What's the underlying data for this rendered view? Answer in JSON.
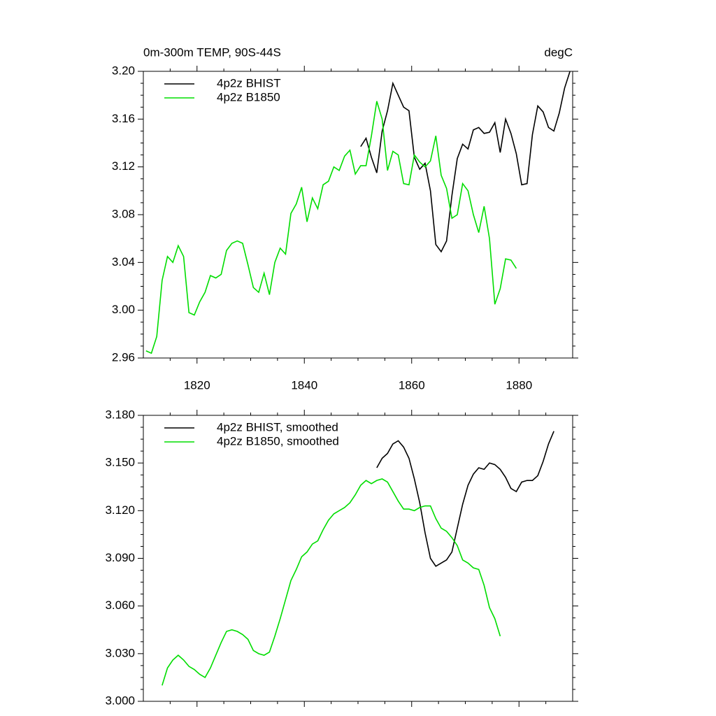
{
  "chart_data": [
    {
      "type": "line",
      "title": "0m-300m TEMP, 90S-44S",
      "unit_label": "degC",
      "xlim": [
        1810,
        1890
      ],
      "xticks": [
        1820,
        1840,
        1860,
        1880
      ],
      "ylim": [
        2.96,
        3.2
      ],
      "yticks": [
        2.96,
        {
          "value": 3.0,
          "label": "3.00"
        },
        3.04,
        3.08,
        3.12,
        3.16,
        {
          "value": 3.2,
          "label": "3.20"
        }
      ],
      "xtick_labels": true,
      "legend": "top-left",
      "series": [
        {
          "name": "4p2z BHIST",
          "color": "#000000",
          "x": [
            1850.5,
            1851.5,
            1852.5,
            1853.5,
            1854.5,
            1855.5,
            1856.5,
            1857.5,
            1858.5,
            1859.5,
            1860.5,
            1861.5,
            1862.5,
            1863.5,
            1864.5,
            1865.5,
            1866.5,
            1867.5,
            1868.5,
            1869.5,
            1870.5,
            1871.5,
            1872.5,
            1873.5,
            1874.5,
            1875.5,
            1876.5,
            1877.5,
            1878.5,
            1879.5,
            1880.5,
            1881.5,
            1882.5,
            1883.5,
            1884.5,
            1885.5,
            1886.5,
            1887.5,
            1888.5,
            1889.5
          ],
          "values": [
            3.137,
            3.144,
            3.128,
            3.115,
            3.15,
            3.167,
            3.19,
            3.18,
            3.17,
            3.167,
            3.128,
            3.118,
            3.123,
            3.1,
            3.055,
            3.049,
            3.058,
            3.096,
            3.127,
            3.139,
            3.135,
            3.151,
            3.153,
            3.148,
            3.149,
            3.157,
            3.132,
            3.16,
            3.148,
            3.131,
            3.105,
            3.106,
            3.147,
            3.171,
            3.166,
            3.153,
            3.15,
            3.165,
            3.186,
            3.2
          ]
        },
        {
          "name": "4p2z B1850",
          "color": "#00dd00",
          "x": [
            1810.5,
            1811.5,
            1812.5,
            1813.5,
            1814.5,
            1815.5,
            1816.5,
            1817.5,
            1818.5,
            1819.5,
            1820.5,
            1821.5,
            1822.5,
            1823.5,
            1824.5,
            1825.5,
            1826.5,
            1827.5,
            1828.5,
            1829.5,
            1830.5,
            1831.5,
            1832.5,
            1833.5,
            1834.5,
            1835.5,
            1836.5,
            1837.5,
            1838.5,
            1839.5,
            1840.5,
            1841.5,
            1842.5,
            1843.5,
            1844.5,
            1845.5,
            1846.5,
            1847.5,
            1848.5,
            1849.5,
            1850.5,
            1851.5,
            1852.5,
            1853.5,
            1854.5,
            1855.5,
            1856.5,
            1857.5,
            1858.5,
            1859.5,
            1860.5,
            1861.5,
            1862.5,
            1863.5,
            1864.5,
            1865.5,
            1866.5,
            1867.5,
            1868.5,
            1869.5,
            1870.5,
            1871.5,
            1872.5,
            1873.5,
            1874.5,
            1875.5,
            1876.5,
            1877.5,
            1878.5,
            1879.5
          ],
          "values": [
            2.966,
            2.964,
            2.978,
            3.025,
            3.045,
            3.04,
            3.054,
            3.045,
            2.998,
            2.996,
            3.007,
            3.015,
            3.029,
            3.027,
            3.03,
            3.05,
            3.056,
            3.058,
            3.056,
            3.038,
            3.019,
            3.015,
            3.031,
            3.013,
            3.04,
            3.052,
            3.047,
            3.081,
            3.089,
            3.103,
            3.074,
            3.094,
            3.085,
            3.105,
            3.108,
            3.12,
            3.117,
            3.129,
            3.134,
            3.114,
            3.121,
            3.121,
            3.146,
            3.175,
            3.16,
            3.117,
            3.133,
            3.13,
            3.106,
            3.105,
            3.13,
            3.124,
            3.12,
            3.125,
            3.146,
            3.113,
            3.102,
            3.077,
            3.08,
            3.106,
            3.1,
            3.08,
            3.065,
            3.087,
            3.06,
            3.005,
            3.018,
            3.043,
            3.042,
            3.035
          ]
        }
      ]
    },
    {
      "type": "line",
      "xlim": [
        1810,
        1890
      ],
      "xticks": [
        1820,
        1840,
        1860,
        1880
      ],
      "ylim": [
        3.0,
        3.18
      ],
      "yticks": [
        {
          "value": 3.0,
          "label": "3.000"
        },
        {
          "value": 3.03,
          "label": "3.030"
        },
        {
          "value": 3.06,
          "label": "3.060"
        },
        {
          "value": 3.09,
          "label": "3.090"
        },
        {
          "value": 3.12,
          "label": "3.120"
        },
        {
          "value": 3.15,
          "label": "3.150"
        },
        {
          "value": 3.18,
          "label": "3.180"
        }
      ],
      "xtick_labels": false,
      "legend": "top-left",
      "series": [
        {
          "name": "4p2z BHIST, smoothed",
          "color": "#000000",
          "x": [
            1853.5,
            1854.5,
            1855.5,
            1856.5,
            1857.5,
            1858.5,
            1859.5,
            1860.5,
            1861.5,
            1862.5,
            1863.5,
            1864.5,
            1865.5,
            1866.5,
            1867.5,
            1868.5,
            1869.5,
            1870.5,
            1871.5,
            1872.5,
            1873.5,
            1874.5,
            1875.5,
            1876.5,
            1877.5,
            1878.5,
            1879.5,
            1880.5,
            1881.5,
            1882.5,
            1883.5,
            1884.5,
            1885.5,
            1886.5
          ],
          "values": [
            3.147,
            3.153,
            3.156,
            3.162,
            3.164,
            3.16,
            3.153,
            3.14,
            3.125,
            3.106,
            3.09,
            3.085,
            3.087,
            3.089,
            3.094,
            3.109,
            3.124,
            3.136,
            3.143,
            3.147,
            3.146,
            3.15,
            3.149,
            3.146,
            3.141,
            3.134,
            3.132,
            3.138,
            3.139,
            3.139,
            3.142,
            3.151,
            3.162,
            3.17
          ]
        },
        {
          "name": "4p2z B1850, smoothed",
          "color": "#00dd00",
          "x": [
            1813.5,
            1814.5,
            1815.5,
            1816.5,
            1817.5,
            1818.5,
            1819.5,
            1820.5,
            1821.5,
            1822.5,
            1823.5,
            1824.5,
            1825.5,
            1826.5,
            1827.5,
            1828.5,
            1829.5,
            1830.5,
            1831.5,
            1832.5,
            1833.5,
            1834.5,
            1835.5,
            1836.5,
            1837.5,
            1838.5,
            1839.5,
            1840.5,
            1841.5,
            1842.5,
            1843.5,
            1844.5,
            1845.5,
            1846.5,
            1847.5,
            1848.5,
            1849.5,
            1850.5,
            1851.5,
            1852.5,
            1853.5,
            1854.5,
            1855.5,
            1856.5,
            1857.5,
            1858.5,
            1859.5,
            1860.5,
            1861.5,
            1862.5,
            1863.5,
            1864.5,
            1865.5,
            1866.5,
            1867.5,
            1868.5,
            1869.5,
            1870.5,
            1871.5,
            1872.5,
            1873.5,
            1874.5,
            1875.5,
            1876.5
          ],
          "values": [
            3.01,
            3.021,
            3.026,
            3.029,
            3.026,
            3.022,
            3.02,
            3.017,
            3.015,
            3.021,
            3.029,
            3.037,
            3.044,
            3.045,
            3.044,
            3.042,
            3.039,
            3.032,
            3.03,
            3.029,
            3.031,
            3.041,
            3.052,
            3.064,
            3.076,
            3.083,
            3.091,
            3.094,
            3.099,
            3.101,
            3.108,
            3.114,
            3.118,
            3.12,
            3.122,
            3.125,
            3.13,
            3.136,
            3.139,
            3.137,
            3.139,
            3.14,
            3.138,
            3.132,
            3.126,
            3.121,
            3.121,
            3.12,
            3.122,
            3.123,
            3.123,
            3.115,
            3.109,
            3.107,
            3.103,
            3.098,
            3.089,
            3.087,
            3.084,
            3.083,
            3.073,
            3.059,
            3.052,
            3.041
          ]
        }
      ]
    }
  ]
}
